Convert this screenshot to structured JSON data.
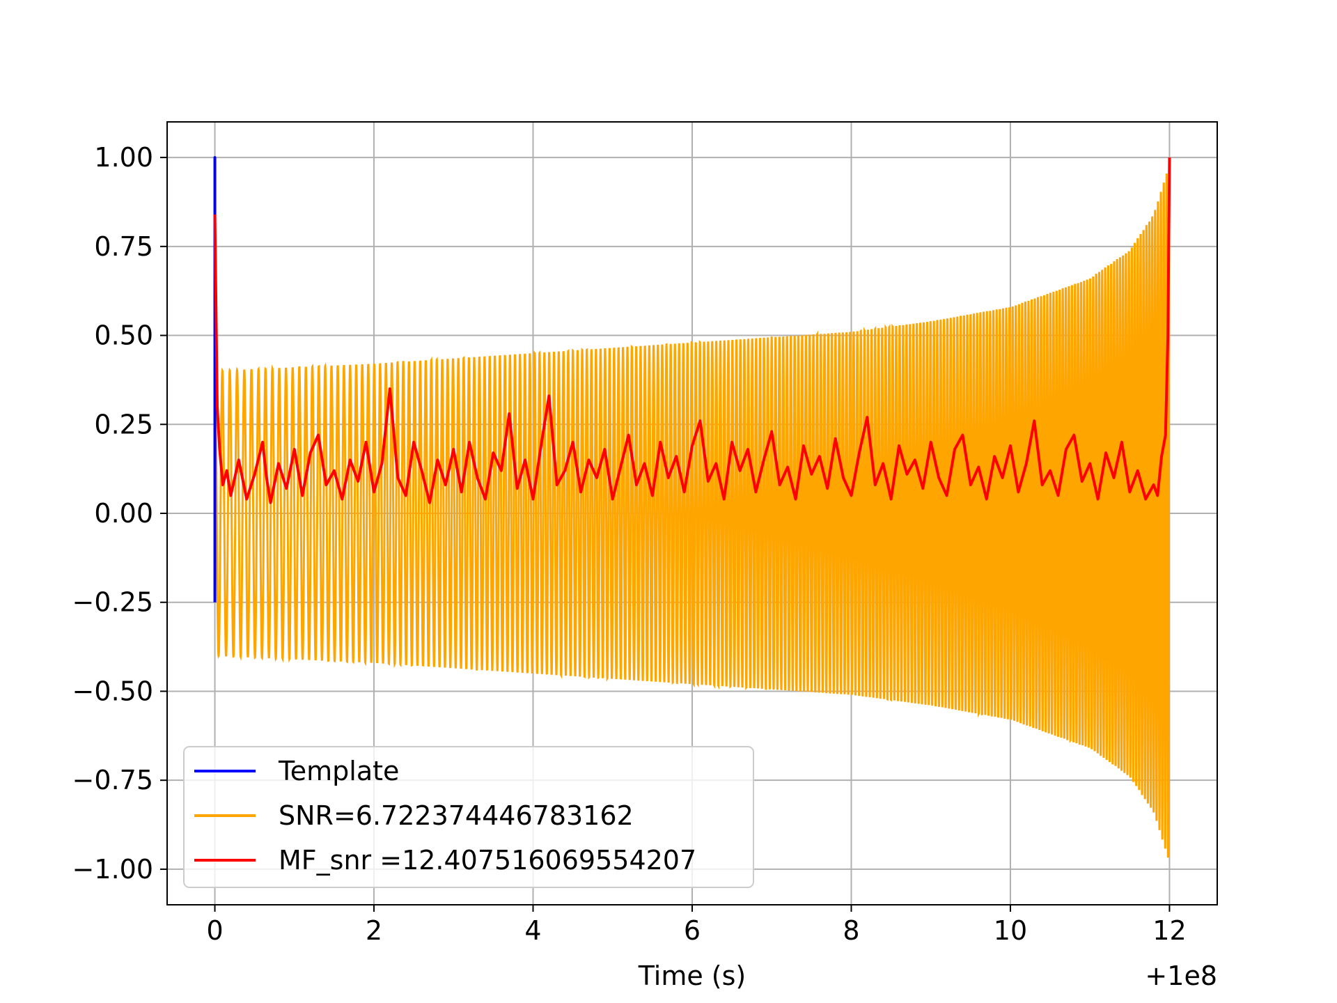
{
  "chart_data": {
    "type": "line",
    "xlabel": "Time (s)",
    "ylabel": "",
    "x_offset_label": "+1e8",
    "xlim": [
      -0.6,
      12.6
    ],
    "ylim": [
      -1.1,
      1.1
    ],
    "xticks": [
      0,
      2,
      4,
      6,
      8,
      10,
      12
    ],
    "xtick_labels": [
      "0",
      "2",
      "4",
      "6",
      "8",
      "10",
      "12"
    ],
    "yticks": [
      1.0,
      0.75,
      0.5,
      0.25,
      0.0,
      -0.25,
      -0.5,
      -0.75,
      -1.0
    ],
    "ytick_labels": [
      "1.00",
      "0.75",
      "0.50",
      "0.25",
      "0.00",
      "−0.25",
      "−0.50",
      "−0.75",
      "−1.00"
    ],
    "grid": true,
    "legend_position": "lower-left",
    "series": [
      {
        "name": "Template",
        "color": "#0000ff",
        "x": [
          0,
          0.0,
          0.0
        ],
        "y": [
          -0.25,
          1.0,
          -0.25
        ]
      },
      {
        "name": "SNR=6.722374446783162",
        "color": "#ffa500",
        "shape": "chirp",
        "x_range": [
          0,
          12
        ],
        "cycles": 230,
        "envelope": {
          "x": [
            0,
            2,
            4,
            6,
            8,
            9,
            10,
            10.5,
            11,
            11.5,
            11.8,
            12
          ],
          "y": [
            0.4,
            0.42,
            0.45,
            0.48,
            0.51,
            0.54,
            0.58,
            0.62,
            0.66,
            0.74,
            0.84,
            0.98
          ]
        }
      },
      {
        "name": "MF_snr =12.407516069554207",
        "color": "#ff0000",
        "x": [
          0,
          0.03,
          0.06,
          0.1,
          0.15,
          0.2,
          0.3,
          0.4,
          0.5,
          0.6,
          0.65,
          0.7,
          0.8,
          0.9,
          1.0,
          1.1,
          1.2,
          1.3,
          1.4,
          1.5,
          1.6,
          1.7,
          1.8,
          1.9,
          2.0,
          2.1,
          2.2,
          2.3,
          2.4,
          2.5,
          2.6,
          2.7,
          2.8,
          2.9,
          3.0,
          3.1,
          3.2,
          3.3,
          3.4,
          3.5,
          3.6,
          3.7,
          3.8,
          3.9,
          4.0,
          4.1,
          4.2,
          4.3,
          4.4,
          4.5,
          4.6,
          4.7,
          4.8,
          4.9,
          5.0,
          5.1,
          5.2,
          5.3,
          5.4,
          5.5,
          5.6,
          5.7,
          5.8,
          5.9,
          6.0,
          6.1,
          6.2,
          6.3,
          6.4,
          6.5,
          6.6,
          6.7,
          6.8,
          6.9,
          7.0,
          7.1,
          7.2,
          7.3,
          7.4,
          7.5,
          7.6,
          7.7,
          7.8,
          7.9,
          8.0,
          8.1,
          8.2,
          8.3,
          8.4,
          8.5,
          8.6,
          8.7,
          8.8,
          8.9,
          9.0,
          9.1,
          9.2,
          9.3,
          9.4,
          9.5,
          9.6,
          9.7,
          9.8,
          9.9,
          10.0,
          10.1,
          10.2,
          10.3,
          10.4,
          10.5,
          10.6,
          10.7,
          10.8,
          10.9,
          11.0,
          11.1,
          11.2,
          11.3,
          11.4,
          11.5,
          11.6,
          11.7,
          11.8,
          11.85,
          11.9,
          11.95,
          11.98,
          12.0
        ],
        "y": [
          0.84,
          0.3,
          0.18,
          0.08,
          0.12,
          0.05,
          0.15,
          0.04,
          0.11,
          0.2,
          0.1,
          0.03,
          0.14,
          0.07,
          0.18,
          0.05,
          0.17,
          0.22,
          0.08,
          0.12,
          0.04,
          0.15,
          0.09,
          0.2,
          0.06,
          0.14,
          0.35,
          0.1,
          0.05,
          0.2,
          0.12,
          0.03,
          0.15,
          0.08,
          0.18,
          0.06,
          0.2,
          0.1,
          0.04,
          0.17,
          0.12,
          0.28,
          0.07,
          0.15,
          0.04,
          0.19,
          0.33,
          0.08,
          0.12,
          0.2,
          0.06,
          0.15,
          0.1,
          0.18,
          0.04,
          0.13,
          0.22,
          0.08,
          0.14,
          0.05,
          0.2,
          0.1,
          0.16,
          0.06,
          0.19,
          0.26,
          0.09,
          0.14,
          0.04,
          0.2,
          0.12,
          0.18,
          0.06,
          0.15,
          0.23,
          0.08,
          0.13,
          0.04,
          0.19,
          0.11,
          0.16,
          0.07,
          0.21,
          0.1,
          0.05,
          0.17,
          0.27,
          0.08,
          0.14,
          0.04,
          0.19,
          0.11,
          0.15,
          0.07,
          0.2,
          0.1,
          0.05,
          0.18,
          0.22,
          0.08,
          0.13,
          0.04,
          0.16,
          0.1,
          0.19,
          0.06,
          0.14,
          0.26,
          0.08,
          0.12,
          0.05,
          0.18,
          0.22,
          0.09,
          0.14,
          0.04,
          0.17,
          0.1,
          0.2,
          0.06,
          0.12,
          0.04,
          0.08,
          0.05,
          0.16,
          0.22,
          0.5,
          1.0
        ]
      }
    ]
  }
}
